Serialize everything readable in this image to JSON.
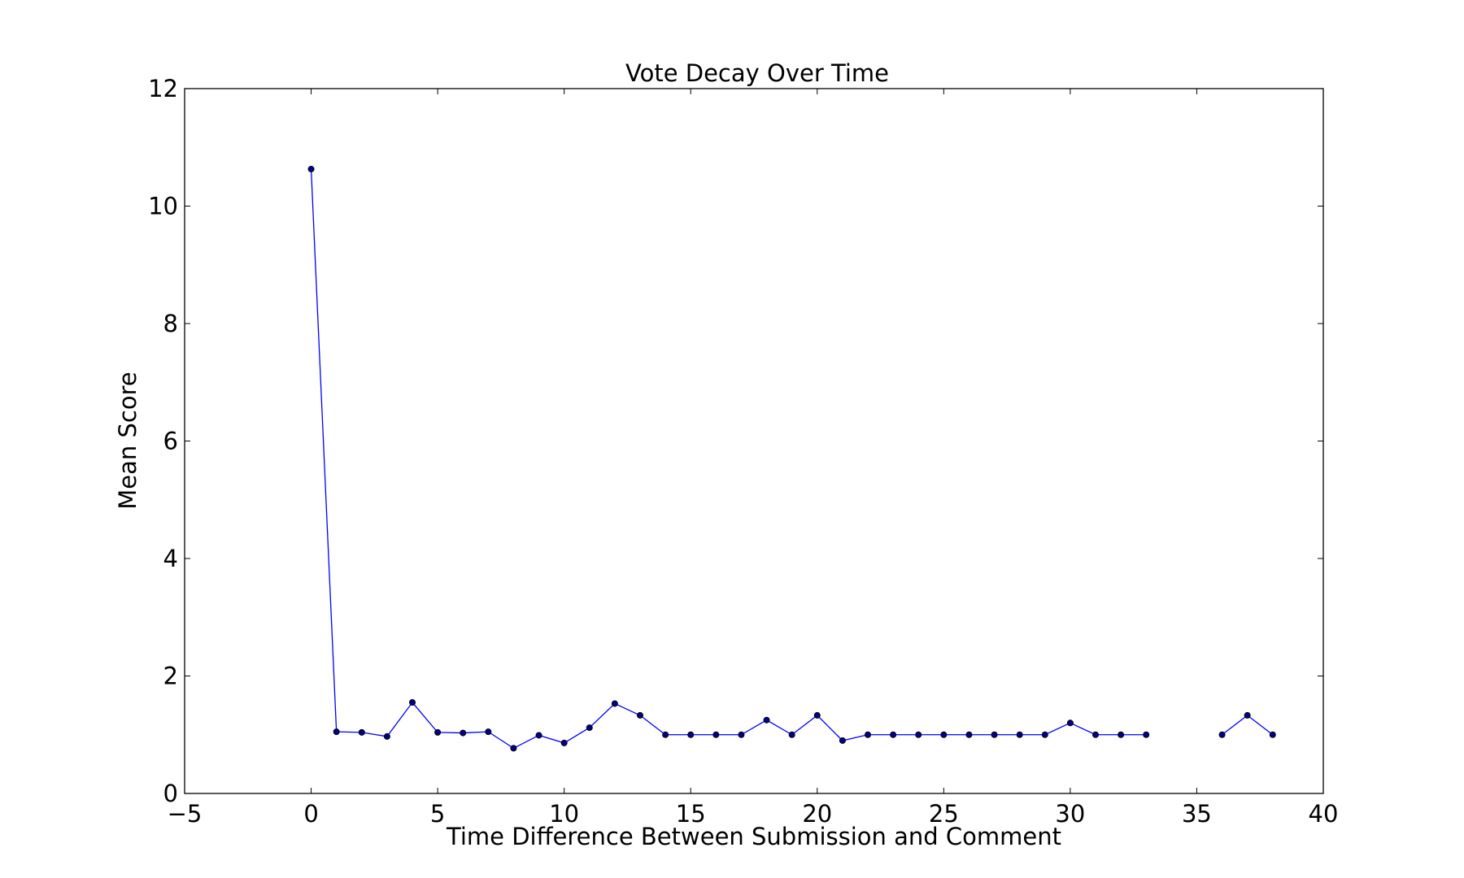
{
  "chart_data": {
    "type": "line",
    "title": "Vote Decay Over Time",
    "xlabel": "Time Difference Between Submission and Comment",
    "ylabel": "Mean Score",
    "xlim": [
      -5,
      40
    ],
    "ylim": [
      0,
      12
    ],
    "xticks": [
      -5,
      0,
      5,
      10,
      15,
      20,
      25,
      30,
      35,
      40
    ],
    "yticks": [
      0,
      2,
      4,
      6,
      8,
      10,
      12
    ],
    "xtick_labels": [
      "−5",
      "0",
      "5",
      "10",
      "15",
      "20",
      "25",
      "30",
      "35",
      "40"
    ],
    "ytick_labels": [
      "0",
      "2",
      "4",
      "6",
      "8",
      "10",
      "12"
    ],
    "grid": false,
    "legend": false,
    "line_color": "#0000ff",
    "marker_color": "#000080",
    "series": [
      {
        "segments": [
          {
            "x": [
              0,
              1,
              2,
              3,
              4,
              5,
              6,
              7,
              8,
              9,
              10,
              11,
              12,
              13,
              14,
              15,
              16,
              17,
              18,
              19,
              20,
              21,
              22,
              23,
              24,
              25,
              26,
              27,
              28,
              29,
              30,
              31,
              32,
              33
            ],
            "y": [
              10.63,
              1.05,
              1.04,
              0.97,
              1.55,
              1.04,
              1.03,
              1.05,
              0.77,
              0.99,
              0.86,
              1.12,
              1.53,
              1.33,
              1.0,
              1.0,
              1.0,
              1.0,
              1.25,
              1.0,
              1.33,
              0.9,
              1.0,
              1.0,
              1.0,
              1.0,
              1.0,
              1.0,
              1.0,
              1.0,
              1.2,
              1.0,
              1.0,
              1.0
            ]
          },
          {
            "x": [
              36,
              37,
              38
            ],
            "y": [
              1.0,
              1.33,
              1.0
            ]
          }
        ]
      }
    ]
  }
}
